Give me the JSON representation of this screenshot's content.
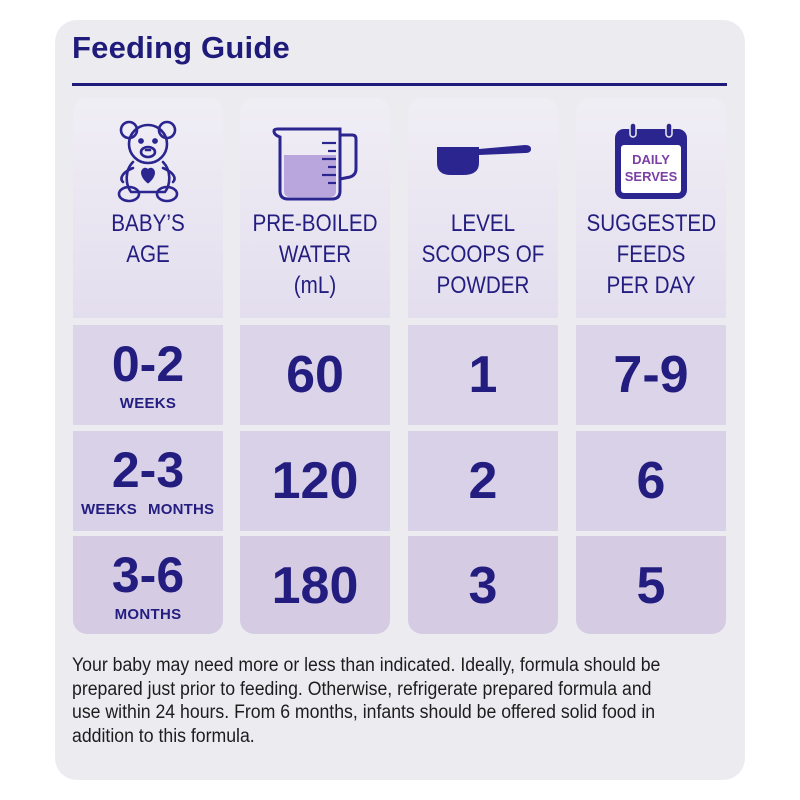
{
  "title": "Feeding Guide",
  "colors": {
    "navy": "#231d80",
    "card": "#ececf0",
    "cell": "#dcd5e9",
    "purple_fill": "#6b3fa0"
  },
  "columns": [
    {
      "icon": "teddy-bear-icon",
      "label_lines": [
        "BABY’S",
        "AGE"
      ]
    },
    {
      "icon": "measuring-jug-icon",
      "label_lines": [
        "PRE-BOILED",
        "WATER",
        "(mL)"
      ]
    },
    {
      "icon": "scoop-icon",
      "label_lines": [
        "LEVEL",
        "SCOOPS OF",
        "POWDER"
      ]
    },
    {
      "icon": "calendar-icon",
      "calendar_text": [
        "DAILY",
        "SERVES"
      ],
      "label_lines": [
        "SUGGESTED",
        "FEEDS",
        "PER DAY"
      ]
    }
  ],
  "rows": [
    {
      "age": "0-2",
      "age_unit": "WEEKS",
      "water": "60",
      "scoops": "1",
      "feeds": "7-9"
    },
    {
      "age": "2-3",
      "age_unit_left": "WEEKS",
      "age_unit_right": "MONTHS",
      "water": "120",
      "scoops": "2",
      "feeds": "6"
    },
    {
      "age": "3-6",
      "age_unit": "MONTHS",
      "water": "180",
      "scoops": "3",
      "feeds": "5"
    }
  ],
  "note": "Your baby may need more or less than indicated. Ideally, formula should be prepared just prior to feeding. Otherwise, refrigerate prepared formula and use within 24 hours. From 6 months, infants should be offered solid food in addition to this formula."
}
